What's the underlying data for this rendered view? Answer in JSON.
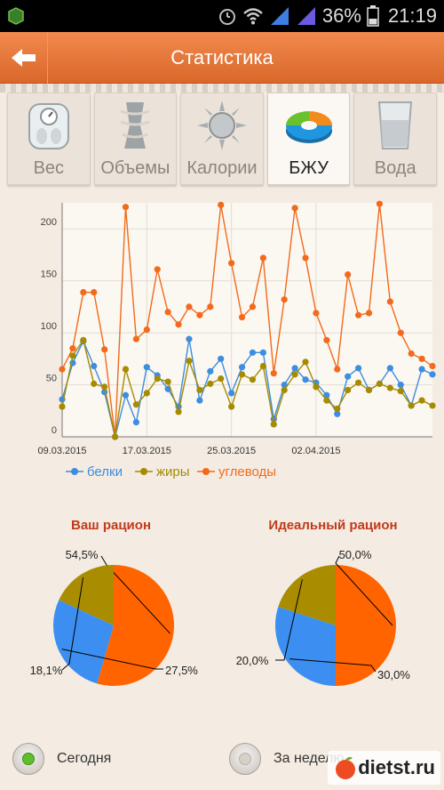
{
  "statusbar": {
    "battery": "36%",
    "time": "21:19"
  },
  "header": {
    "title": "Статистика"
  },
  "tabs": [
    {
      "label": "Вес",
      "icon": "scale-icon"
    },
    {
      "label": "Объемы",
      "icon": "body-measure-icon"
    },
    {
      "label": "Калории",
      "icon": "sun-icon"
    },
    {
      "label": "БЖУ",
      "icon": "donut-chart-icon",
      "active": true
    },
    {
      "label": "Вода",
      "icon": "water-glass-icon"
    }
  ],
  "chart_data": [
    {
      "type": "line",
      "x": [
        "09.03.2015",
        "10.03.2015",
        "11.03.2015",
        "12.03.2015",
        "13.03.2015",
        "14.03.2015",
        "15.03.2015",
        "16.03.2015",
        "17.03.2015",
        "18.03.2015",
        "19.03.2015",
        "20.03.2015",
        "21.03.2015",
        "22.03.2015",
        "23.03.2015",
        "24.03.2015",
        "25.03.2015",
        "26.03.2015",
        "27.03.2015",
        "28.03.2015",
        "29.03.2015",
        "30.03.2015",
        "31.03.2015",
        "01.04.2015",
        "02.04.2015",
        "03.04.2015",
        "04.04.2015",
        "05.04.2015",
        "06.04.2015",
        "07.04.2015",
        "08.04.2015",
        "09.04.2015",
        "10.04.2015",
        "11.04.2015",
        "12.04.2015",
        "13.04.2015"
      ],
      "x_tick_labels": [
        "09.03.2015",
        "17.03.2015",
        "25.03.2015",
        "02.04.2015"
      ],
      "series": [
        {
          "name": "белки",
          "color": "#3d8de0",
          "values": [
            36,
            71,
            92,
            68,
            43,
            0,
            40,
            14,
            67,
            59,
            46,
            29,
            94,
            35,
            63,
            75,
            42,
            67,
            81,
            81,
            17,
            50,
            66,
            55,
            52,
            40,
            22,
            58,
            66,
            45,
            51,
            66,
            50,
            30,
            65,
            60
          ]
        },
        {
          "name": "жиры",
          "color": "#a68b00",
          "values": [
            29,
            78,
            93,
            51,
            48,
            0,
            65,
            31,
            42,
            56,
            53,
            24,
            73,
            45,
            51,
            56,
            29,
            60,
            55,
            68,
            12,
            45,
            60,
            72,
            48,
            35,
            27,
            45,
            52,
            45,
            51,
            47,
            44,
            30,
            35,
            30
          ]
        },
        {
          "name": "углеводы",
          "color": "#f26a1b",
          "values": [
            65,
            85,
            139,
            139,
            84,
            0,
            221,
            94,
            103,
            161,
            120,
            108,
            125,
            117,
            125,
            223,
            167,
            115,
            125,
            172,
            61,
            132,
            220,
            172,
            119,
            93,
            65,
            156,
            117,
            119,
            224,
            130,
            100,
            80,
            75,
            68
          ]
        }
      ],
      "y_ticks": [
        0,
        50,
        100,
        150,
        200
      ],
      "ylim": [
        0,
        225
      ]
    },
    {
      "type": "pie",
      "title": "Ваш рацион",
      "slices": [
        {
          "label": "54,5%",
          "value": 54.5,
          "color": "#ff6400"
        },
        {
          "label": "27,5%",
          "value": 27.5,
          "color": "#3c8ff0"
        },
        {
          "label": "18,1%",
          "value": 18.1,
          "color": "#a98c00"
        }
      ]
    },
    {
      "type": "pie",
      "title": "Идеальный рацион",
      "slices": [
        {
          "label": "50,0%",
          "value": 50.0,
          "color": "#ff6400"
        },
        {
          "label": "30,0%",
          "value": 30.0,
          "color": "#3c8ff0"
        },
        {
          "label": "20,0%",
          "value": 20.0,
          "color": "#a98c00"
        }
      ]
    }
  ],
  "radios": [
    {
      "label": "Сегодня",
      "selected": true
    },
    {
      "label": "За неделю",
      "selected": false
    }
  ],
  "watermark": "dietst.ru"
}
